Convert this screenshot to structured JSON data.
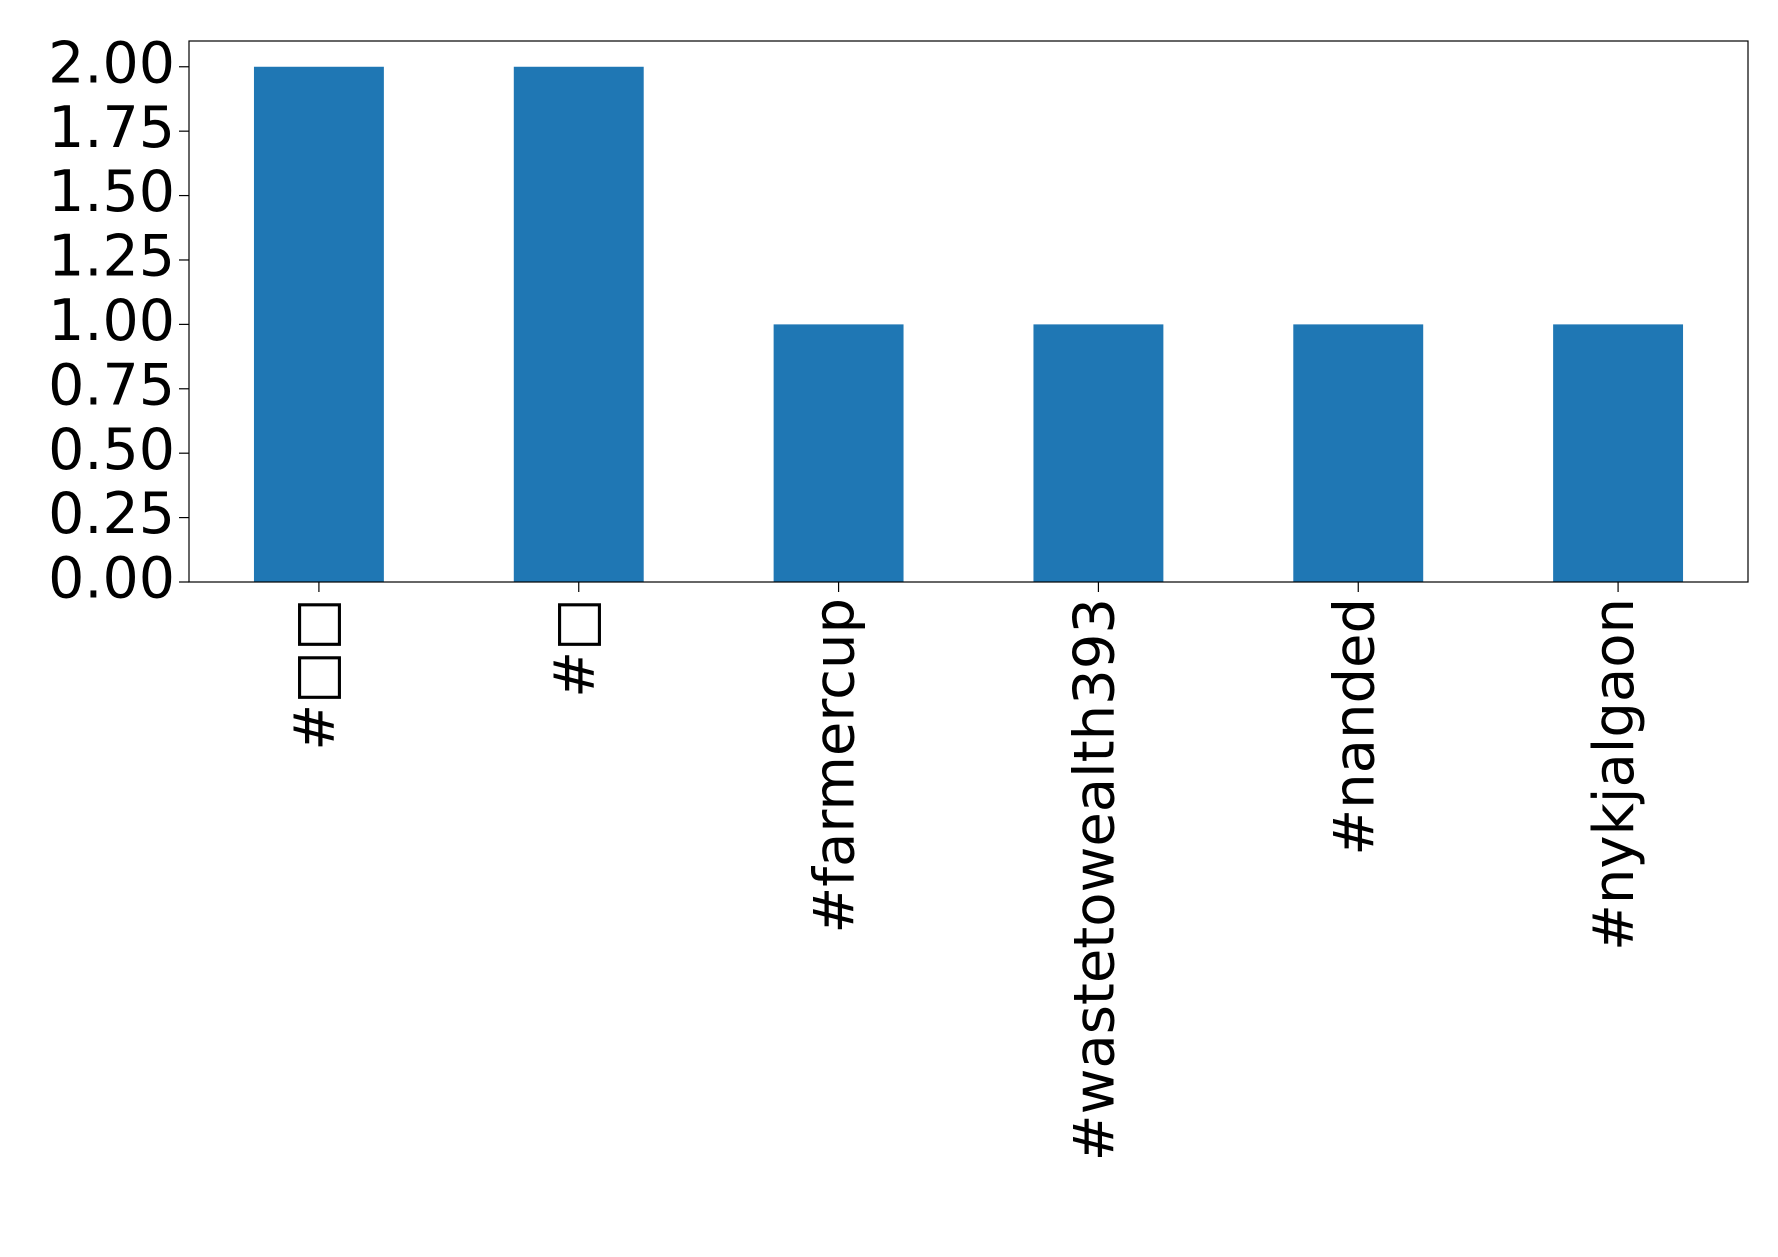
{
  "chart_data": {
    "type": "bar",
    "categories": [
      "#□□",
      "#□",
      "#farmercup",
      "#wastetowealth393",
      "#nanded",
      "#nykjalgaon"
    ],
    "values": [
      2,
      2,
      1,
      1,
      1,
      1
    ],
    "color": "#1f77b4",
    "ylim": [
      0,
      2.1
    ],
    "yticks": [
      {
        "value": 0,
        "label": "0.00"
      },
      {
        "value": 0.25,
        "label": "0.25"
      },
      {
        "value": 0.5,
        "label": "0.50"
      },
      {
        "value": 0.75,
        "label": "0.75"
      },
      {
        "value": 1,
        "label": "1.00"
      },
      {
        "value": 1.25,
        "label": "1.25"
      },
      {
        "value": 1.5,
        "label": "1.50"
      },
      {
        "value": 1.75,
        "label": "1.75"
      },
      {
        "value": 2,
        "label": "2.00"
      }
    ],
    "grid": false
  }
}
